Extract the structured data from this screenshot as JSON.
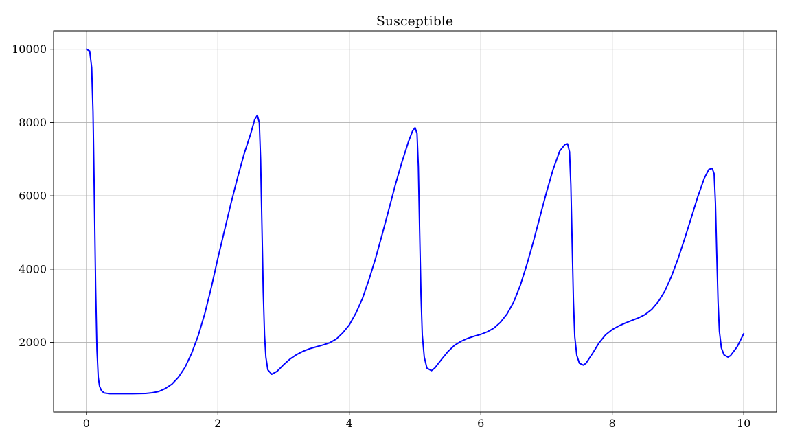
{
  "chart_data": {
    "type": "line",
    "title": "Susceptible",
    "xlabel": "",
    "ylabel": "",
    "xlim": [
      -0.5,
      10.5
    ],
    "ylim": [
      100,
      10500
    ],
    "x_ticks": [
      0,
      2,
      4,
      6,
      8,
      10
    ],
    "y_ticks": [
      2000,
      4000,
      6000,
      8000,
      10000
    ],
    "grid": true,
    "legend": "none",
    "series": [
      {
        "color": "#0000ff",
        "points": [
          [
            0.0,
            10000
          ],
          [
            0.05,
            9950
          ],
          [
            0.08,
            9500
          ],
          [
            0.1,
            8300
          ],
          [
            0.12,
            6000
          ],
          [
            0.14,
            3500
          ],
          [
            0.16,
            1800
          ],
          [
            0.18,
            1050
          ],
          [
            0.2,
            800
          ],
          [
            0.23,
            680
          ],
          [
            0.27,
            620
          ],
          [
            0.35,
            600
          ],
          [
            0.5,
            600
          ],
          [
            0.7,
            600
          ],
          [
            0.9,
            605
          ],
          [
            1.0,
            625
          ],
          [
            1.1,
            660
          ],
          [
            1.2,
            740
          ],
          [
            1.3,
            860
          ],
          [
            1.4,
            1050
          ],
          [
            1.5,
            1320
          ],
          [
            1.6,
            1700
          ],
          [
            1.7,
            2180
          ],
          [
            1.8,
            2780
          ],
          [
            1.9,
            3500
          ],
          [
            2.0,
            4300
          ],
          [
            2.1,
            5050
          ],
          [
            2.2,
            5800
          ],
          [
            2.3,
            6500
          ],
          [
            2.4,
            7150
          ],
          [
            2.5,
            7700
          ],
          [
            2.56,
            8080
          ],
          [
            2.6,
            8200
          ],
          [
            2.63,
            8000
          ],
          [
            2.65,
            7000
          ],
          [
            2.67,
            5200
          ],
          [
            2.69,
            3400
          ],
          [
            2.71,
            2200
          ],
          [
            2.73,
            1600
          ],
          [
            2.76,
            1250
          ],
          [
            2.82,
            1130
          ],
          [
            2.9,
            1210
          ],
          [
            3.0,
            1390
          ],
          [
            3.1,
            1550
          ],
          [
            3.2,
            1670
          ],
          [
            3.3,
            1760
          ],
          [
            3.4,
            1830
          ],
          [
            3.5,
            1880
          ],
          [
            3.6,
            1930
          ],
          [
            3.7,
            1990
          ],
          [
            3.8,
            2090
          ],
          [
            3.9,
            2260
          ],
          [
            4.0,
            2480
          ],
          [
            4.1,
            2800
          ],
          [
            4.2,
            3200
          ],
          [
            4.3,
            3720
          ],
          [
            4.4,
            4300
          ],
          [
            4.5,
            4950
          ],
          [
            4.6,
            5620
          ],
          [
            4.7,
            6300
          ],
          [
            4.8,
            6920
          ],
          [
            4.9,
            7480
          ],
          [
            4.96,
            7760
          ],
          [
            5.0,
            7860
          ],
          [
            5.03,
            7700
          ],
          [
            5.05,
            6800
          ],
          [
            5.07,
            5000
          ],
          [
            5.09,
            3300
          ],
          [
            5.11,
            2200
          ],
          [
            5.14,
            1600
          ],
          [
            5.18,
            1300
          ],
          [
            5.25,
            1230
          ],
          [
            5.3,
            1300
          ],
          [
            5.4,
            1530
          ],
          [
            5.5,
            1750
          ],
          [
            5.6,
            1920
          ],
          [
            5.7,
            2030
          ],
          [
            5.8,
            2110
          ],
          [
            5.9,
            2170
          ],
          [
            6.0,
            2220
          ],
          [
            6.1,
            2290
          ],
          [
            6.2,
            2390
          ],
          [
            6.3,
            2550
          ],
          [
            6.4,
            2780
          ],
          [
            6.5,
            3100
          ],
          [
            6.6,
            3550
          ],
          [
            6.7,
            4120
          ],
          [
            6.8,
            4750
          ],
          [
            6.9,
            5430
          ],
          [
            7.0,
            6100
          ],
          [
            7.1,
            6720
          ],
          [
            7.2,
            7220
          ],
          [
            7.28,
            7400
          ],
          [
            7.32,
            7420
          ],
          [
            7.35,
            7200
          ],
          [
            7.37,
            6300
          ],
          [
            7.39,
            4700
          ],
          [
            7.41,
            3100
          ],
          [
            7.43,
            2150
          ],
          [
            7.46,
            1650
          ],
          [
            7.5,
            1430
          ],
          [
            7.56,
            1380
          ],
          [
            7.6,
            1430
          ],
          [
            7.7,
            1700
          ],
          [
            7.8,
            1990
          ],
          [
            7.9,
            2210
          ],
          [
            8.0,
            2350
          ],
          [
            8.1,
            2450
          ],
          [
            8.2,
            2530
          ],
          [
            8.3,
            2600
          ],
          [
            8.4,
            2670
          ],
          [
            8.5,
            2760
          ],
          [
            8.6,
            2900
          ],
          [
            8.7,
            3110
          ],
          [
            8.8,
            3400
          ],
          [
            8.9,
            3800
          ],
          [
            9.0,
            4280
          ],
          [
            9.1,
            4820
          ],
          [
            9.2,
            5390
          ],
          [
            9.3,
            5970
          ],
          [
            9.4,
            6480
          ],
          [
            9.47,
            6720
          ],
          [
            9.52,
            6750
          ],
          [
            9.55,
            6600
          ],
          [
            9.57,
            5800
          ],
          [
            9.59,
            4400
          ],
          [
            9.61,
            3100
          ],
          [
            9.63,
            2300
          ],
          [
            9.66,
            1850
          ],
          [
            9.7,
            1660
          ],
          [
            9.76,
            1600
          ],
          [
            9.8,
            1640
          ],
          [
            9.9,
            1880
          ],
          [
            10.0,
            2240
          ]
        ]
      }
    ]
  }
}
